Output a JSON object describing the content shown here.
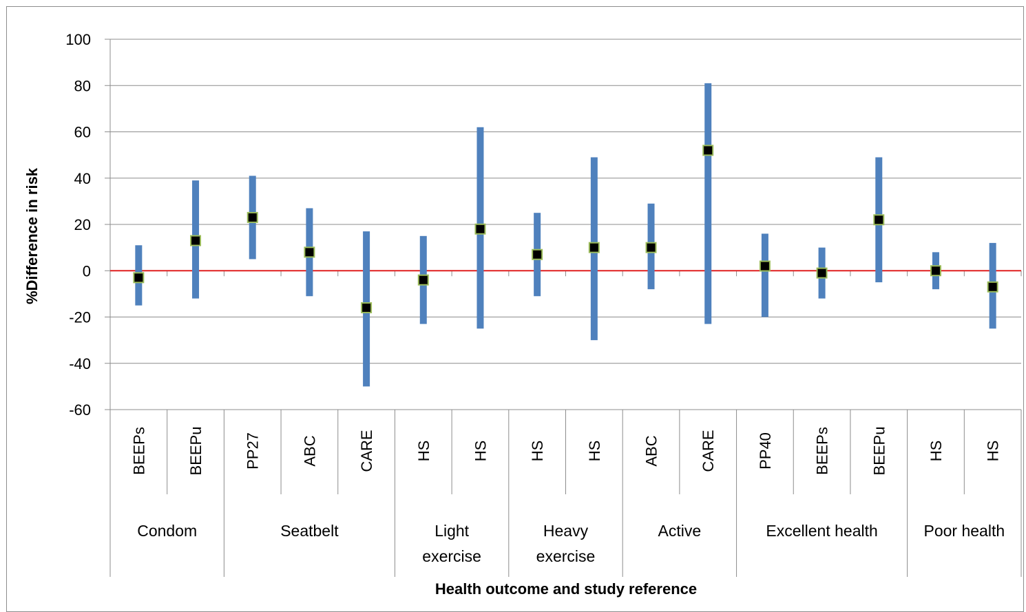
{
  "chart_data": {
    "type": "errorbar",
    "title": "",
    "xlabel": "Health outcome and study reference",
    "ylabel": "%Difference in risk",
    "ylim": [
      -60,
      100
    ],
    "yticks": [
      100,
      80,
      60,
      40,
      20,
      0,
      -20,
      -40,
      -60
    ],
    "grid": true,
    "reference_line": 0,
    "colors": {
      "bar": "#4f81bd",
      "marker_fill": "#000000",
      "marker_border": "#9bbb59",
      "reference_line": "#e02020",
      "grid": "#8c8c8c",
      "axis": "#8c8c8c"
    },
    "groups": [
      {
        "label": "Condom",
        "items": [
          {
            "study": "BEEPs",
            "value": -3,
            "low": -15,
            "high": 11
          },
          {
            "study": "BEEPu",
            "value": 13,
            "low": -12,
            "high": 39
          }
        ]
      },
      {
        "label": "Seatbelt",
        "items": [
          {
            "study": "PP27",
            "value": 23,
            "low": 5,
            "high": 41
          },
          {
            "study": "ABC",
            "value": 8,
            "low": -11,
            "high": 27
          },
          {
            "study": "CARE",
            "value": -16,
            "low": -50,
            "high": 17
          }
        ]
      },
      {
        "label": "Light exercise",
        "items": [
          {
            "study": "HS",
            "value": -4,
            "low": -23,
            "high": 15
          },
          {
            "study": "HS",
            "value": 18,
            "low": -25,
            "high": 62
          }
        ]
      },
      {
        "label": "Heavy exercise",
        "items": [
          {
            "study": "HS",
            "value": 7,
            "low": -11,
            "high": 25
          },
          {
            "study": "HS",
            "value": 10,
            "low": -30,
            "high": 49
          }
        ]
      },
      {
        "label": "Active",
        "items": [
          {
            "study": "ABC",
            "value": 10,
            "low": -8,
            "high": 29
          },
          {
            "study": "CARE",
            "value": 52,
            "low": -23,
            "high": 81
          }
        ]
      },
      {
        "label": "Excellent health",
        "items": [
          {
            "study": "PP40",
            "value": 2,
            "low": -20,
            "high": 16
          },
          {
            "study": "BEEPs",
            "value": -1,
            "low": -12,
            "high": 10
          },
          {
            "study": "BEEPu",
            "value": 22,
            "low": -5,
            "high": 49
          }
        ]
      },
      {
        "label": "Poor health",
        "items": [
          {
            "study": "HS",
            "value": 0,
            "low": -8,
            "high": 8
          },
          {
            "study": "HS",
            "value": -7,
            "low": -25,
            "high": 12
          }
        ]
      }
    ]
  }
}
